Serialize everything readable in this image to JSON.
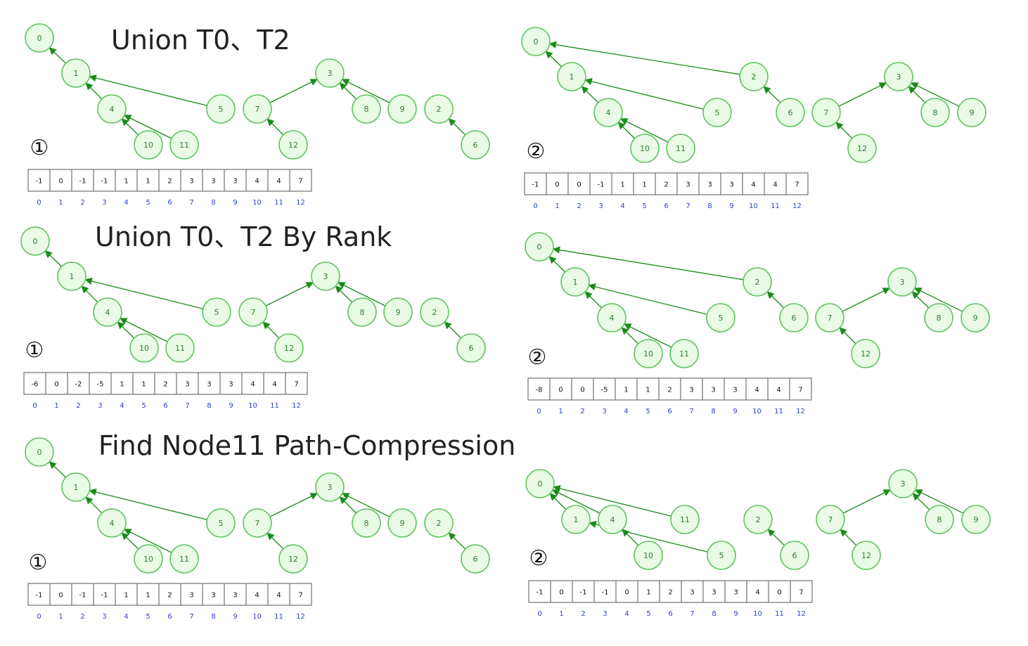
{
  "sections": [
    {
      "title": "Union T0、T2",
      "panels": [
        {
          "step": "①",
          "nodes": [
            "0",
            "1",
            "4",
            "10",
            "11",
            "5",
            "3",
            "7",
            "12",
            "8",
            "9",
            "2",
            "6"
          ],
          "edges": [
            [
              "1",
              "0"
            ],
            [
              "4",
              "1"
            ],
            [
              "5",
              "1"
            ],
            [
              "10",
              "4"
            ],
            [
              "11",
              "4"
            ],
            [
              "7",
              "3"
            ],
            [
              "8",
              "3"
            ],
            [
              "9",
              "3"
            ],
            [
              "12",
              "7"
            ],
            [
              "6",
              "2"
            ]
          ],
          "array": [
            "-1",
            "0",
            "-1",
            "-1",
            "1",
            "1",
            "2",
            "3",
            "3",
            "3",
            "4",
            "4",
            "7"
          ],
          "indices": [
            "0",
            "1",
            "2",
            "3",
            "4",
            "5",
            "6",
            "7",
            "8",
            "9",
            "10",
            "11",
            "12"
          ]
        },
        {
          "step": "②",
          "nodes": [
            "0",
            "1",
            "4",
            "10",
            "11",
            "5",
            "2",
            "6",
            "3",
            "7",
            "12",
            "8",
            "9"
          ],
          "edges": [
            [
              "1",
              "0"
            ],
            [
              "2",
              "0"
            ],
            [
              "4",
              "1"
            ],
            [
              "5",
              "1"
            ],
            [
              "10",
              "4"
            ],
            [
              "11",
              "4"
            ],
            [
              "6",
              "2"
            ],
            [
              "7",
              "3"
            ],
            [
              "8",
              "3"
            ],
            [
              "9",
              "3"
            ],
            [
              "12",
              "7"
            ]
          ],
          "array": [
            "-1",
            "0",
            "0",
            "-1",
            "1",
            "1",
            "2",
            "3",
            "3",
            "3",
            "4",
            "4",
            "7"
          ],
          "indices": [
            "0",
            "1",
            "2",
            "3",
            "4",
            "5",
            "6",
            "7",
            "8",
            "9",
            "10",
            "11",
            "12"
          ]
        }
      ]
    },
    {
      "title": "Union T0、T2 By Rank",
      "panels": [
        {
          "step": "①",
          "nodes": [
            "0",
            "1",
            "4",
            "10",
            "11",
            "5",
            "3",
            "7",
            "12",
            "8",
            "9",
            "2",
            "6"
          ],
          "edges": [
            [
              "1",
              "0"
            ],
            [
              "4",
              "1"
            ],
            [
              "5",
              "1"
            ],
            [
              "10",
              "4"
            ],
            [
              "11",
              "4"
            ],
            [
              "7",
              "3"
            ],
            [
              "8",
              "3"
            ],
            [
              "9",
              "3"
            ],
            [
              "12",
              "7"
            ],
            [
              "6",
              "2"
            ]
          ],
          "array": [
            "-6",
            "0",
            "-2",
            "-5",
            "1",
            "1",
            "2",
            "3",
            "3",
            "3",
            "4",
            "4",
            "7"
          ],
          "indices": [
            "0",
            "1",
            "2",
            "3",
            "4",
            "5",
            "6",
            "7",
            "8",
            "9",
            "10",
            "11",
            "12"
          ]
        },
        {
          "step": "②",
          "nodes": [
            "0",
            "1",
            "4",
            "10",
            "11",
            "5",
            "2",
            "6",
            "3",
            "7",
            "12",
            "8",
            "9"
          ],
          "edges": [
            [
              "1",
              "0"
            ],
            [
              "2",
              "0"
            ],
            [
              "4",
              "1"
            ],
            [
              "5",
              "1"
            ],
            [
              "10",
              "4"
            ],
            [
              "11",
              "4"
            ],
            [
              "6",
              "2"
            ],
            [
              "7",
              "3"
            ],
            [
              "8",
              "3"
            ],
            [
              "9",
              "3"
            ],
            [
              "12",
              "7"
            ]
          ],
          "array": [
            "-8",
            "0",
            "0",
            "-5",
            "1",
            "1",
            "2",
            "3",
            "3",
            "3",
            "4",
            "4",
            "7"
          ],
          "indices": [
            "0",
            "1",
            "2",
            "3",
            "4",
            "5",
            "6",
            "7",
            "8",
            "9",
            "10",
            "11",
            "12"
          ]
        }
      ]
    },
    {
      "title": "Find Node11 Path-Compression",
      "panels": [
        {
          "step": "①",
          "nodes": [
            "0",
            "1",
            "4",
            "10",
            "11",
            "5",
            "3",
            "7",
            "12",
            "8",
            "9",
            "2",
            "6"
          ],
          "edges": [
            [
              "1",
              "0"
            ],
            [
              "4",
              "1"
            ],
            [
              "5",
              "1"
            ],
            [
              "10",
              "4"
            ],
            [
              "11",
              "4"
            ],
            [
              "7",
              "3"
            ],
            [
              "8",
              "3"
            ],
            [
              "9",
              "3"
            ],
            [
              "12",
              "7"
            ],
            [
              "6",
              "2"
            ]
          ],
          "array": [
            "-1",
            "0",
            "-1",
            "-1",
            "1",
            "1",
            "2",
            "3",
            "3",
            "3",
            "4",
            "4",
            "7"
          ],
          "indices": [
            "0",
            "1",
            "2",
            "3",
            "4",
            "5",
            "6",
            "7",
            "8",
            "9",
            "10",
            "11",
            "12"
          ]
        },
        {
          "step": "②",
          "nodes": [
            "0",
            "1",
            "4",
            "11",
            "10",
            "5",
            "2",
            "6",
            "3",
            "7",
            "12",
            "8",
            "9"
          ],
          "edges": [
            [
              "1",
              "0"
            ],
            [
              "4",
              "0"
            ],
            [
              "11",
              "0"
            ],
            [
              "5",
              "1"
            ],
            [
              "10",
              "4"
            ],
            [
              "6",
              "2"
            ],
            [
              "7",
              "3"
            ],
            [
              "8",
              "3"
            ],
            [
              "9",
              "3"
            ],
            [
              "12",
              "7"
            ]
          ],
          "array": [
            "-1",
            "0",
            "-1",
            "-1",
            "0",
            "1",
            "2",
            "3",
            "3",
            "3",
            "4",
            "0",
            "7"
          ],
          "indices": [
            "0",
            "1",
            "2",
            "3",
            "4",
            "5",
            "6",
            "7",
            "8",
            "9",
            "10",
            "11",
            "12"
          ]
        }
      ]
    }
  ]
}
